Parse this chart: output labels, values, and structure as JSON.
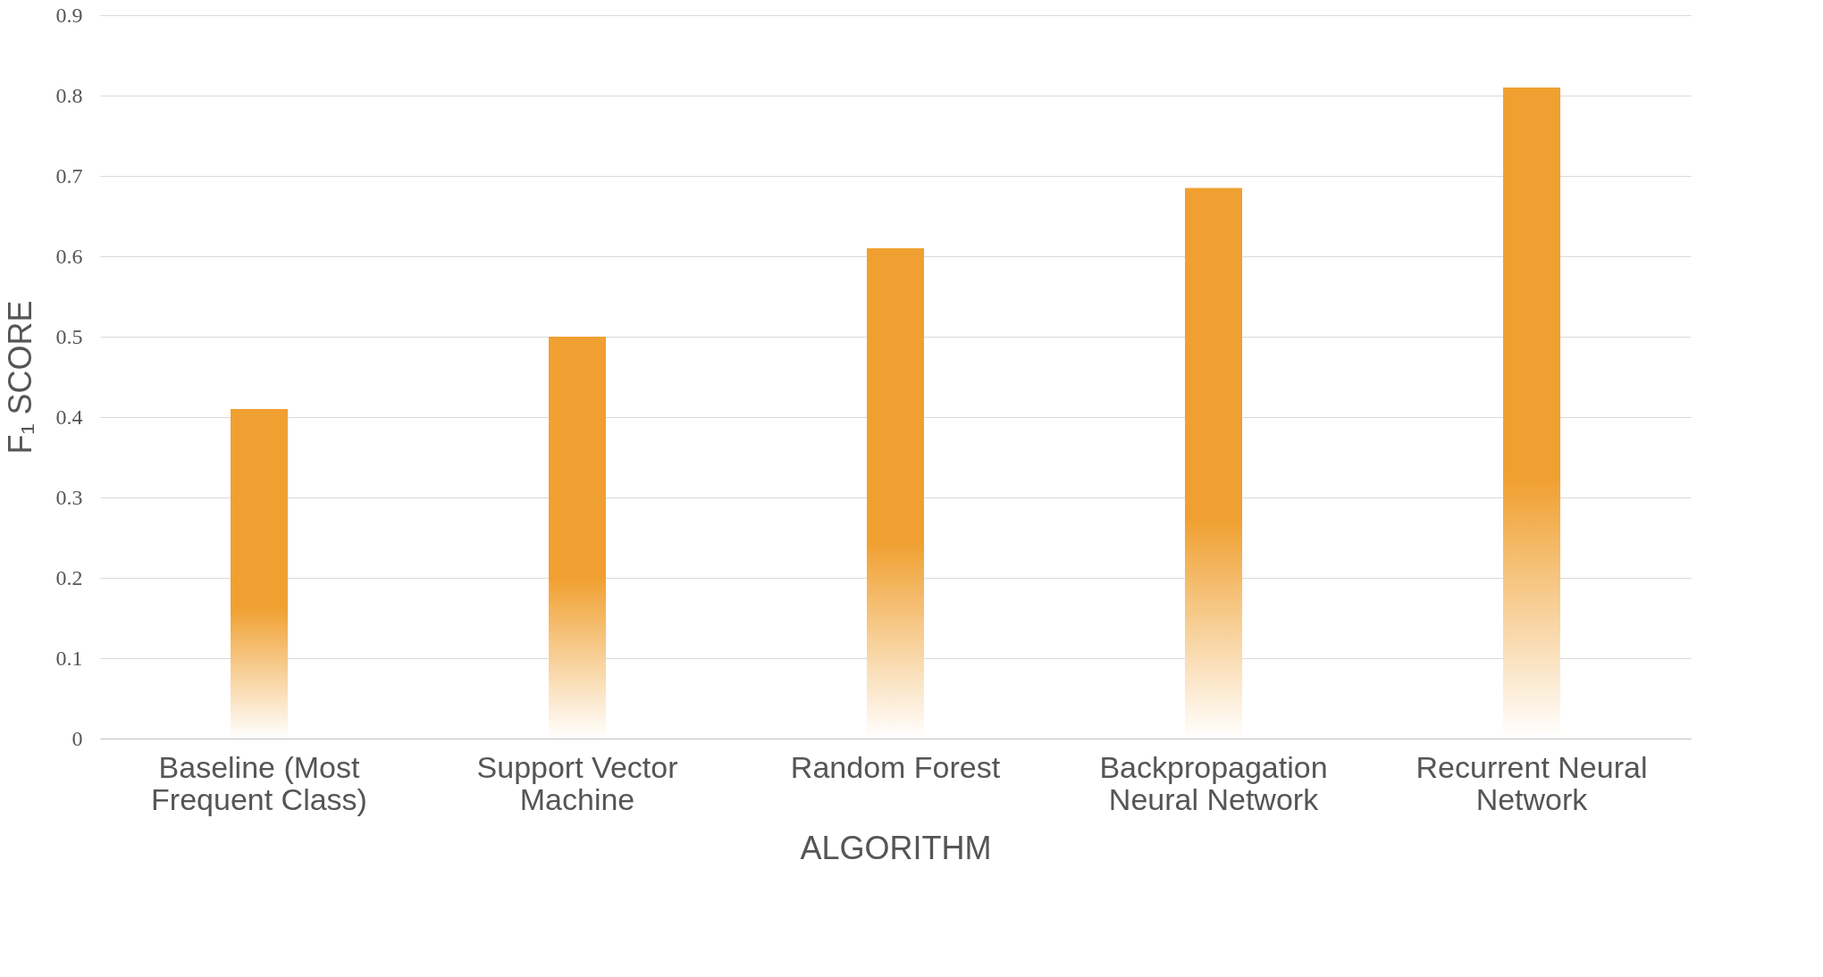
{
  "chart_data": {
    "type": "bar",
    "xlabel": "ALGORITHM",
    "ylabel": "F₁ SCORE",
    "categories": [
      "Baseline (Most Frequent Class)",
      "Support Vector Machine",
      "Random Forest",
      "Backpropagation Neural Network",
      "Recurrent Neural Network"
    ],
    "values": [
      0.41,
      0.5,
      0.61,
      0.685,
      0.81
    ],
    "color": "#f0a030",
    "ylim": [
      0,
      0.9
    ],
    "yticks": [
      0,
      0.1,
      0.2,
      0.3,
      0.4,
      0.5,
      0.6,
      0.7,
      0.8,
      0.9
    ],
    "grid": "y"
  }
}
